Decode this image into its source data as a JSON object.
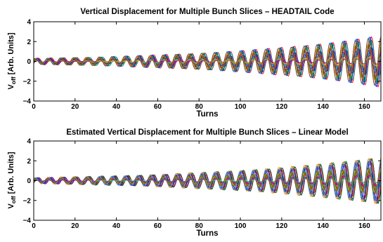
{
  "chart_data": [
    {
      "type": "line",
      "title": "Vertical Displacement for Multiple Bunch Slices – HEADTAIL Code",
      "xlabel": "Turns",
      "ylabel_main": "V",
      "ylabel_sub": "off",
      "ylabel_rest": " [Arb. Units]",
      "xlim": [
        0,
        168
      ],
      "ylim": [
        -4,
        4
      ],
      "xticks": [
        "0",
        "20",
        "40",
        "60",
        "80",
        "100",
        "120",
        "140",
        "160"
      ],
      "yticks": [
        "−4",
        "−2",
        "0",
        "2",
        "4"
      ],
      "grid": false,
      "series_count": 20,
      "oscillation_period_turns": 6.2,
      "amplitude_start": 0.3,
      "amplitude_end": 2.6,
      "colors": [
        "#0000ff",
        "#008000",
        "#ff0000",
        "#00bfbf",
        "#bf00bf",
        "#bfbf00",
        "#404040",
        "#ff8000",
        "#1e90ff",
        "#8b4513"
      ]
    },
    {
      "type": "line",
      "title": "Estimated Vertical Displacement for Multiple Bunch Slices – Linear Model",
      "xlabel": "Turns",
      "ylabel_main": "V",
      "ylabel_sub": "off",
      "ylabel_rest": " [Arb. Units]",
      "xlim": [
        0,
        168
      ],
      "ylim": [
        -4,
        4
      ],
      "xticks": [
        "0",
        "20",
        "40",
        "60",
        "80",
        "100",
        "120",
        "140",
        "160"
      ],
      "yticks": [
        "−4",
        "−2",
        "0",
        "2",
        "4"
      ],
      "grid": false,
      "series_count": 20,
      "oscillation_period_turns": 6.2,
      "amplitude_start": 0.3,
      "amplitude_end": 2.4,
      "colors": [
        "#0000ff",
        "#008000",
        "#ff0000",
        "#00bfbf",
        "#bf00bf",
        "#bfbf00",
        "#404040",
        "#ff8000",
        "#1e90ff",
        "#8b4513"
      ]
    }
  ]
}
